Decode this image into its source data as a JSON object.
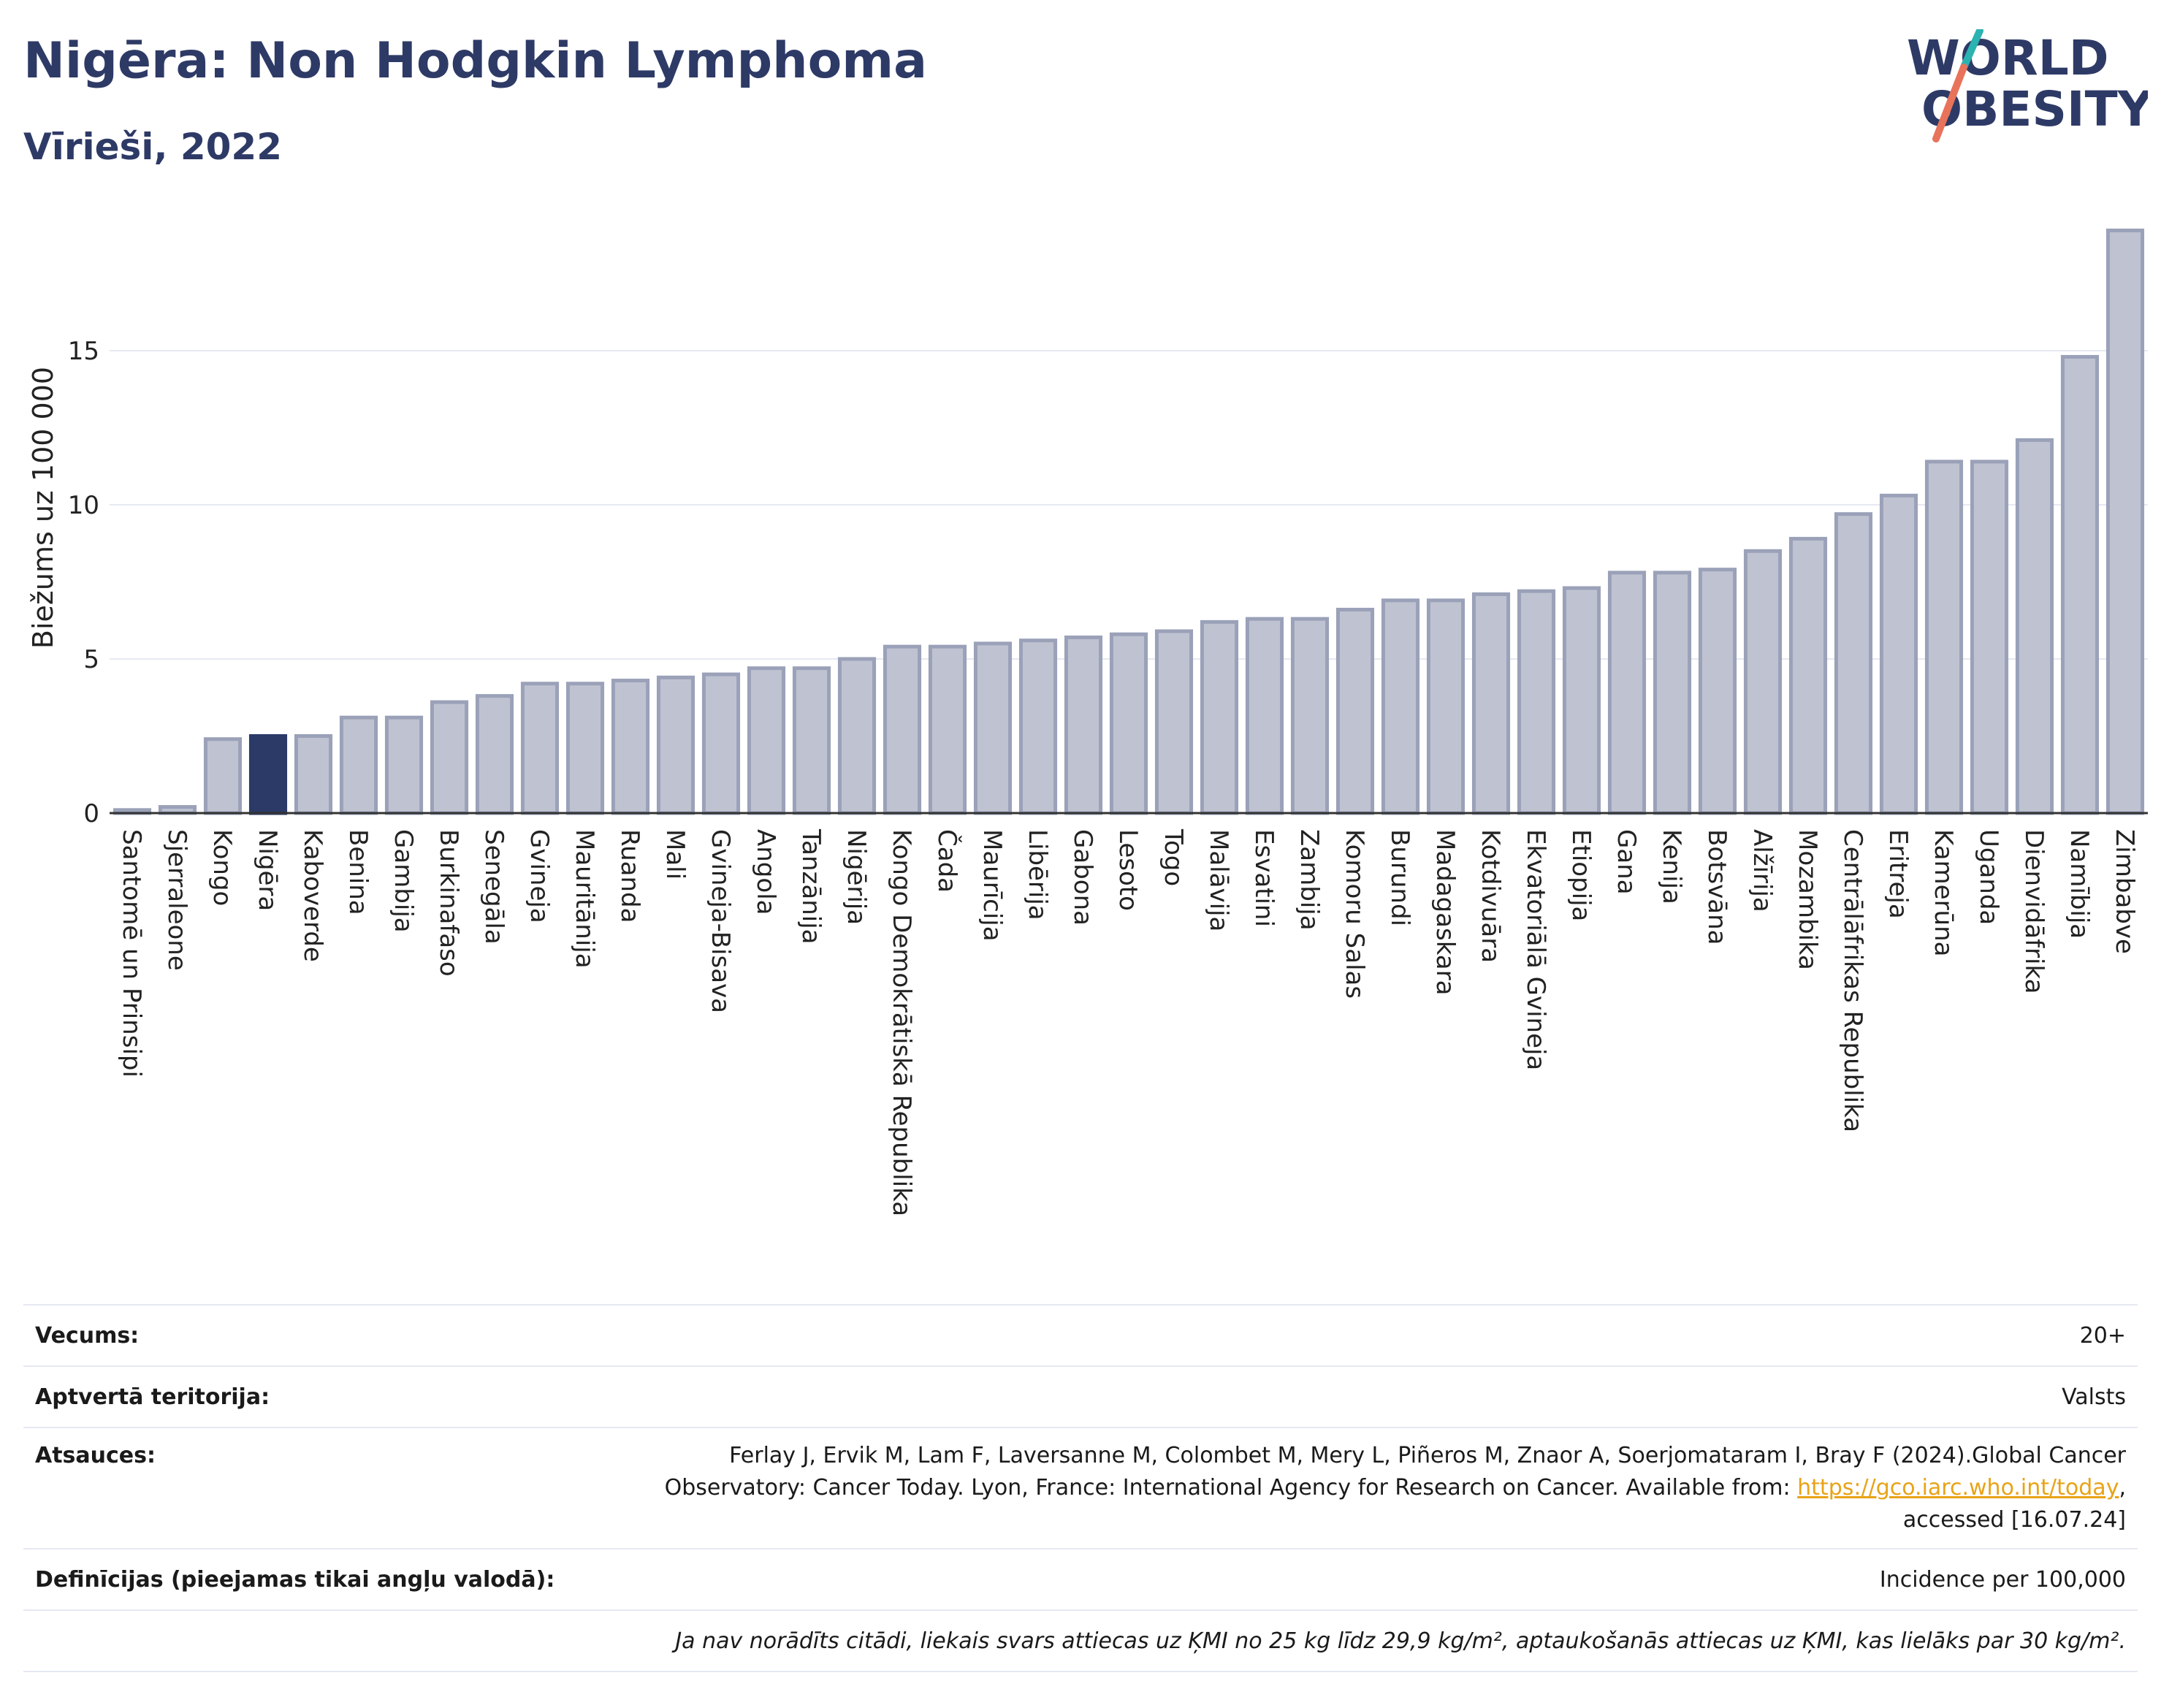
{
  "header": {
    "title": "Nigēra: Non Hodgkin Lymphoma",
    "subtitle": "Vīrieši, 2022"
  },
  "logo": {
    "line1": "WORLD",
    "line2": "OBESITY",
    "accent_colors": [
      "#2bb3b1",
      "#e8735a"
    ]
  },
  "colors": {
    "bar": "#bfc3d1",
    "bar_stroke": "#9aa1b8",
    "highlight": "#2b3a67",
    "grid": "#e6e9f2"
  },
  "chart_data": {
    "type": "bar",
    "ylabel": "Biežums uz 100 000",
    "ylim": [
      0,
      19.2
    ],
    "yticks": [
      0,
      5,
      10,
      15
    ],
    "highlight": "Nigēra",
    "categories": [
      "Santomē un Prinsipi",
      "Sjerraleone",
      "Kongo",
      "Nigēra",
      "Kaboverde",
      "Benina",
      "Gambija",
      "Burkinafaso",
      "Senegāla",
      "Gvineja",
      "Mauritānija",
      "Ruanda",
      "Mali",
      "Gvineja-Bisava",
      "Angola",
      "Tanzānija",
      "Nigērija",
      "Kongo Demokrātiskā Republika",
      "Čada",
      "Maurīcija",
      "Libērija",
      "Gabona",
      "Lesoto",
      "Togo",
      "Malāvija",
      "Esvatini",
      "Zambija",
      "Komoru Salas",
      "Burundi",
      "Madagaskara",
      "Kotdivuāra",
      "Ekvatoriālā Gvineja",
      "Etiopija",
      "Gana",
      "Kenija",
      "Botsvāna",
      "Alžīrija",
      "Mozambika",
      "Centrālāfrikas Republika",
      "Eritreja",
      "Kamerūna",
      "Uganda",
      "Dienvidāfrika",
      "Namībija",
      "Zimbabve"
    ],
    "values": [
      0.1,
      0.2,
      2.4,
      2.5,
      2.5,
      3.1,
      3.1,
      3.6,
      3.8,
      4.2,
      4.2,
      4.3,
      4.4,
      4.5,
      4.7,
      4.7,
      5.0,
      5.4,
      5.4,
      5.5,
      5.6,
      5.7,
      5.8,
      5.9,
      6.2,
      6.3,
      6.3,
      6.6,
      6.9,
      6.9,
      7.1,
      7.2,
      7.3,
      7.8,
      7.8,
      7.9,
      8.5,
      8.9,
      9.7,
      10.3,
      11.4,
      11.4,
      12.1,
      14.8,
      18.9
    ]
  },
  "info": {
    "age_label": "Vecums:",
    "age_value": "20+",
    "territory_label": "Aptvertā teritorija:",
    "territory_value": "Valsts",
    "refs_label": "Atsauces:",
    "refs_line1": "Ferlay J, Ervik M, Lam F, Laversanne M, Colombet M, Mery L, Piñeros M, Znaor A, Soerjomataram I, Bray F (2024).Global Cancer",
    "refs_line2_pre": "Observatory: Cancer Today. Lyon, France: International Agency for Research on Cancer. Available from: ",
    "refs_link": "https://gco.iarc.who.int/today",
    "refs_line2_post": ",",
    "refs_line3": "accessed [16.07.24]",
    "defs_label": "Definīcijas (pieejamas tikai angļu valodā):",
    "defs_value": "Incidence per 100,000",
    "note": "Ja nav norādīts citādi, liekais svars attiecas uz ĶMI no 25 kg līdz 29,9 kg/m², aptaukošanās attiecas uz ĶMI, kas lielāks par 30 kg/m²."
  }
}
